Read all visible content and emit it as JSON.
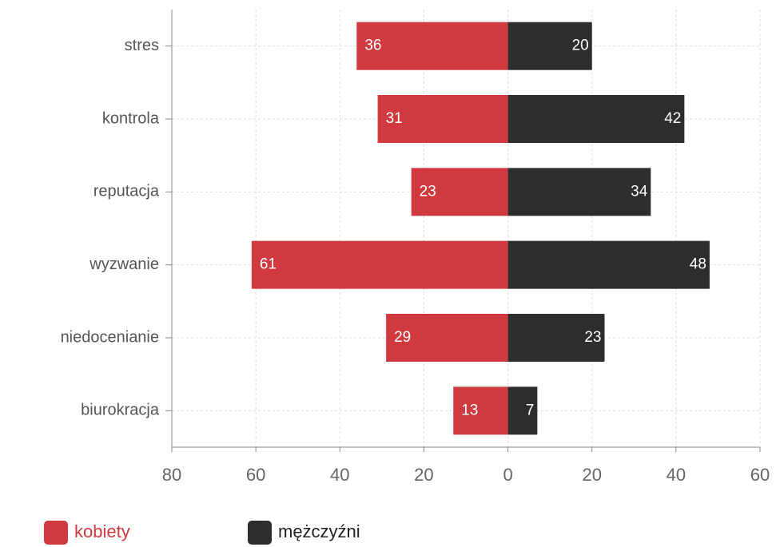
{
  "chart_data": {
    "type": "diverging-bar",
    "categories": [
      "stres",
      "kontrola",
      "reputacja",
      "wyzwanie",
      "niedocenianie",
      "biurokracja"
    ],
    "series": [
      {
        "name": "kobiety",
        "color": "#d0393e",
        "values": [
          -36,
          -31,
          -23,
          -61,
          -29,
          -13
        ],
        "value_labels": [
          "36",
          "31",
          "23",
          "61",
          "29",
          "13"
        ]
      },
      {
        "name": "mężczyźni",
        "color": "#2d2d2d",
        "values": [
          20,
          42,
          34,
          48,
          23,
          7
        ]
      }
    ],
    "xlim": [
      -80,
      60
    ],
    "xticks": [
      {
        "value": -80,
        "label": "80"
      },
      {
        "value": -60,
        "label": "60"
      },
      {
        "value": -40,
        "label": "40"
      },
      {
        "value": -20,
        "label": "20"
      },
      0,
      20,
      40,
      60
    ],
    "grid": true,
    "legend": "bottom"
  }
}
